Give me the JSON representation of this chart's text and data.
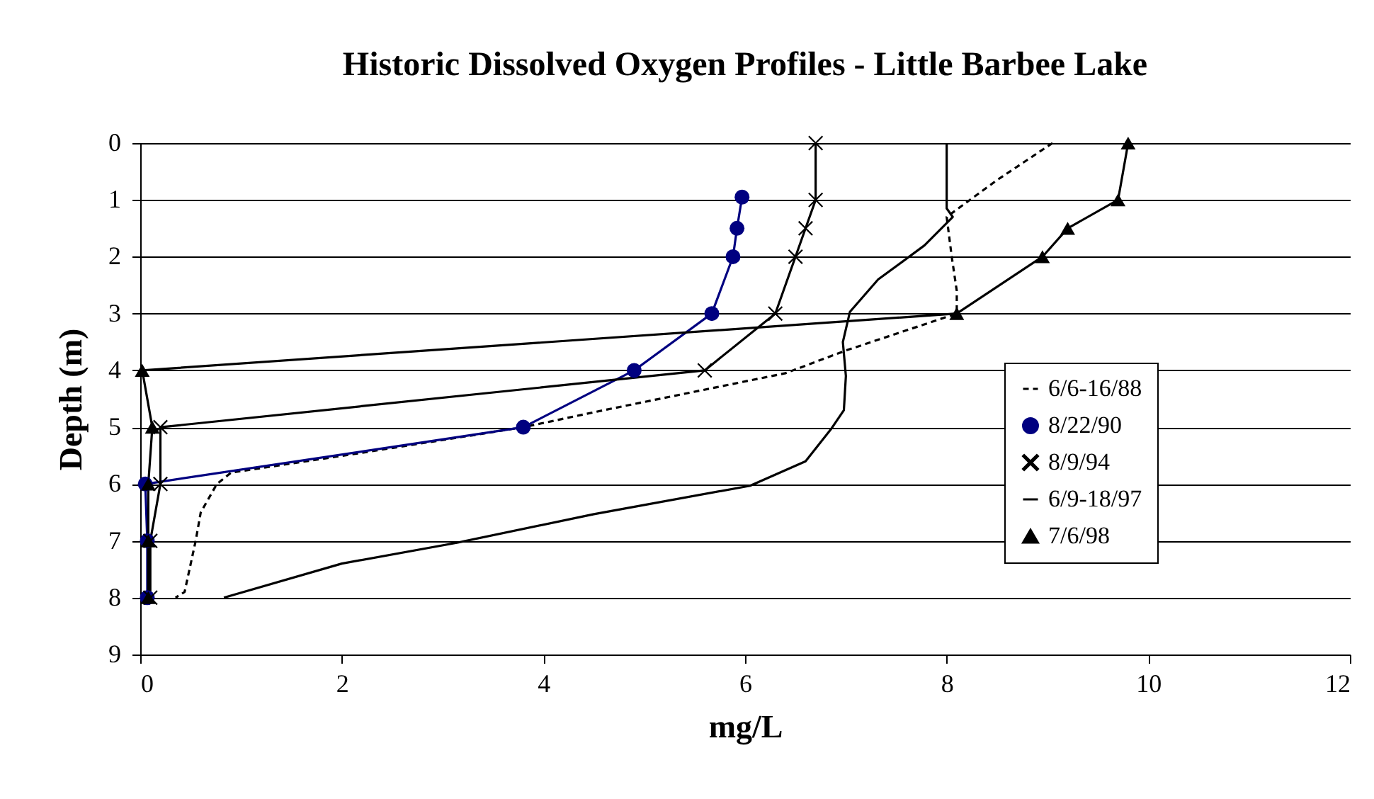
{
  "chart_data": {
    "type": "line",
    "title": "Historic Dissolved Oxygen Profiles - Little Barbee Lake",
    "xlabel": "mg/L",
    "ylabel": "Depth (m)",
    "xlim": [
      0,
      12
    ],
    "xticks": [
      0,
      2,
      4,
      6,
      8,
      10,
      12
    ],
    "ylim": [
      9,
      0
    ],
    "yticks": [
      0,
      1,
      2,
      3,
      4,
      5,
      6,
      7,
      8,
      9
    ],
    "grid": "y",
    "legend": "right",
    "series": [
      {
        "name": "6/6-16/88",
        "color": "#000000",
        "line_style": "dashed",
        "marker": "none",
        "x": [
          9.05,
          8.5,
          8.0,
          8.05,
          8.1,
          8.1,
          7.0,
          6.4,
          4.6,
          3.8,
          2.2,
          0.9,
          0.76,
          0.6,
          0.55,
          0.44,
          0.35
        ],
        "values": [
          0,
          0.65,
          1.3,
          2,
          2.6,
          3,
          3.65,
          4.05,
          4.7,
          5,
          5.45,
          5.8,
          6,
          6.5,
          7,
          7.9,
          8
        ]
      },
      {
        "name": "8/22/90",
        "color": "#000080",
        "line_style": "solid",
        "marker": "circle",
        "x": [
          5.97,
          5.92,
          5.88,
          5.67,
          4.9,
          3.8,
          0.05,
          0.07,
          0.07
        ],
        "values": [
          0.95,
          1.5,
          2,
          3,
          4,
          5,
          6,
          7,
          8
        ]
      },
      {
        "name": "8/9/94",
        "color": "#000000",
        "line_style": "solid",
        "marker": "cross",
        "x": [
          6.7,
          6.7,
          6.6,
          6.5,
          6.3,
          5.6,
          0.2,
          0.2,
          0.1,
          0.1
        ],
        "values": [
          0,
          1,
          1.5,
          2,
          3,
          4,
          5,
          6,
          7,
          8
        ]
      },
      {
        "name": "6/9-18/97",
        "color": "#000000",
        "line_style": "solid",
        "marker": "none",
        "x": [
          8.0,
          8.0,
          8.06,
          7.78,
          7.32,
          7.04,
          6.97,
          7.0,
          6.98,
          6.85,
          6.6,
          6.05,
          4.5,
          3.15,
          2.0,
          0.83
        ],
        "values": [
          0,
          1.15,
          1.3,
          1.8,
          2.4,
          2.97,
          3.5,
          4.1,
          4.7,
          5.04,
          5.6,
          6.03,
          6.53,
          7.03,
          7.4,
          8
        ]
      },
      {
        "name": "7/6/98",
        "color": "#000000",
        "line_style": "solid",
        "marker": "triangle",
        "x": [
          9.8,
          9.7,
          9.2,
          8.95,
          8.1,
          0.02,
          0.12,
          0.08,
          0.08,
          0.08
        ],
        "values": [
          0,
          1,
          1.5,
          2,
          3,
          4,
          5,
          6,
          7,
          8
        ]
      }
    ]
  }
}
